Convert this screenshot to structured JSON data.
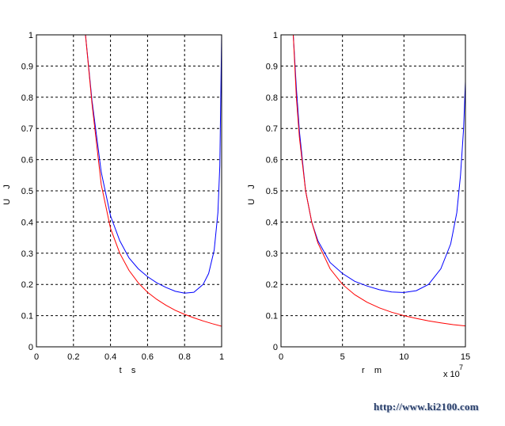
{
  "chart_data": [
    {
      "type": "line",
      "xlabel": "t    s",
      "ylabel": "U    J",
      "xlim": [
        0,
        1
      ],
      "ylim": [
        0,
        1
      ],
      "xticks": [
        "0",
        "0.2",
        "0.4",
        "0.6",
        "0.8",
        "1"
      ],
      "yticks": [
        "0",
        "0.1",
        "0.2",
        "0.3",
        "0.4",
        "0.5",
        "0.6",
        "0.7",
        "0.8",
        "0.9",
        "1"
      ],
      "grid": true,
      "series": [
        {
          "color": "#0000ff",
          "x": [
            0.265,
            0.3,
            0.35,
            0.4,
            0.45,
            0.5,
            0.55,
            0.6,
            0.65,
            0.7,
            0.75,
            0.8,
            0.85,
            0.9,
            0.93,
            0.96,
            0.98,
            0.99,
            1.0
          ],
          "y": [
            1.0,
            0.79,
            0.56,
            0.42,
            0.34,
            0.285,
            0.25,
            0.225,
            0.205,
            0.19,
            0.178,
            0.172,
            0.175,
            0.2,
            0.235,
            0.31,
            0.43,
            0.58,
            1.0
          ]
        },
        {
          "color": "#ff0000",
          "x": [
            0.265,
            0.3,
            0.35,
            0.4,
            0.45,
            0.5,
            0.55,
            0.6,
            0.65,
            0.7,
            0.75,
            0.8,
            0.85,
            0.9,
            0.95,
            1.0
          ],
          "y": [
            1.0,
            0.78,
            0.52,
            0.38,
            0.3,
            0.245,
            0.205,
            0.175,
            0.152,
            0.133,
            0.117,
            0.104,
            0.093,
            0.083,
            0.074,
            0.066
          ]
        }
      ]
    },
    {
      "type": "line",
      "xlabel": "r    m",
      "ylabel": "U    J",
      "xlim": [
        0,
        15
      ],
      "ylim": [
        0,
        1
      ],
      "xticks": [
        "0",
        "5",
        "10",
        "15"
      ],
      "yticks": [
        "0",
        "0.1",
        "0.2",
        "0.3",
        "0.4",
        "0.5",
        "0.6",
        "0.7",
        "0.8",
        "0.9",
        "1"
      ],
      "x_multiplier_base": "x 10",
      "x_multiplier_exp": "7",
      "grid": true,
      "series": [
        {
          "color": "#0000ff",
          "x": [
            1.0,
            1.25,
            1.5,
            2.0,
            2.5,
            3,
            4,
            5,
            6,
            7,
            8,
            9,
            10,
            11,
            12,
            13,
            13.8,
            14.3,
            14.6,
            14.85,
            15.0
          ],
          "y": [
            1.0,
            0.83,
            0.69,
            0.5,
            0.4,
            0.34,
            0.27,
            0.235,
            0.21,
            0.195,
            0.183,
            0.176,
            0.174,
            0.18,
            0.2,
            0.25,
            0.33,
            0.43,
            0.55,
            0.7,
            0.85
          ]
        },
        {
          "color": "#ff0000",
          "x": [
            1.0,
            1.25,
            1.5,
            2.0,
            2.5,
            3,
            4,
            5,
            6,
            7,
            8,
            9,
            10,
            11,
            12,
            13,
            14,
            15
          ],
          "y": [
            1.0,
            0.8,
            0.67,
            0.5,
            0.4,
            0.333,
            0.25,
            0.2,
            0.167,
            0.143,
            0.125,
            0.111,
            0.1,
            0.091,
            0.083,
            0.077,
            0.071,
            0.067
          ]
        }
      ]
    }
  ],
  "watermark": "http://www.ki2100.com"
}
